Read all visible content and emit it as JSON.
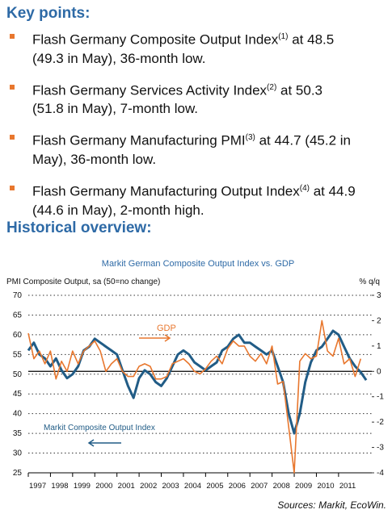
{
  "key_points": {
    "title": "Key points:",
    "items": [
      {
        "text": "Flash Germany Composite Output Index",
        "sup": "(1)",
        "rest": "at 48.5 (49.3 in May), 36-month low."
      },
      {
        "text": "Flash Germany Services Activity Index",
        "sup": "(2)",
        "rest": "at 50.3 (51.8 in May), 7-month low."
      },
      {
        "text": "Flash Germany Manufacturing PMI",
        "sup": "(3)",
        "rest": "at 44.7 (45.2 in May), 36-month low."
      },
      {
        "text": "Flash Germany Manufacturing Output Index",
        "sup": "(4)",
        "rest": "at 44.9 (44.6 in May), 2-month high."
      }
    ]
  },
  "historical_overview": {
    "title": "Historical overview:"
  },
  "chart_data": {
    "type": "line",
    "title": "Markit German Composite Output Index vs. GDP",
    "y_label": "PMI Composite Output, sa (50=no change)",
    "y2_label": "% q/q",
    "x": [
      1997,
      1997.25,
      1997.5,
      1997.75,
      1998,
      1998.25,
      1998.5,
      1998.75,
      1999,
      1999.25,
      1999.5,
      1999.75,
      2000,
      2000.25,
      2000.5,
      2000.75,
      2001,
      2001.25,
      2001.5,
      2001.75,
      2002,
      2002.25,
      2002.5,
      2002.75,
      2003,
      2003.25,
      2003.5,
      2003.75,
      2004,
      2004.25,
      2004.5,
      2004.75,
      2005,
      2005.25,
      2005.5,
      2005.75,
      2006,
      2006.25,
      2006.5,
      2006.75,
      2007,
      2007.25,
      2007.5,
      2007.75,
      2008,
      2008.25,
      2008.5,
      2008.75,
      2009,
      2009.25,
      2009.5,
      2009.75,
      2010,
      2010.25,
      2010.5,
      2010.75,
      2011,
      2011.25,
      2011.5,
      2011.75,
      2012,
      2012.25
    ],
    "xlim": [
      1997,
      2012.5
    ],
    "xticks": [
      1997,
      1998,
      1999,
      2000,
      2001,
      2002,
      2003,
      2004,
      2005,
      2006,
      2007,
      2008,
      2009,
      2010,
      2011
    ],
    "ylim": [
      25,
      70
    ],
    "yticks": [
      25,
      30,
      35,
      40,
      45,
      50,
      55,
      60,
      65,
      70
    ],
    "y2lim": [
      -4,
      3
    ],
    "y2ticks": [
      -4,
      -3,
      -2,
      -1,
      0,
      1,
      2,
      3
    ],
    "grid": true,
    "series": [
      {
        "name": "Markit Composite Output Index",
        "color": "#215c86",
        "values": [
          56,
          58,
          55,
          54,
          52,
          54,
          51,
          49,
          50,
          52,
          56,
          57,
          59,
          58,
          57,
          56,
          55,
          51,
          47,
          44,
          49,
          51,
          50,
          48,
          47,
          49,
          52,
          55,
          56,
          55,
          53,
          52,
          51,
          52,
          53,
          56,
          57,
          59,
          60,
          58,
          58,
          57,
          56,
          55,
          56,
          52,
          48,
          40,
          35,
          40,
          48,
          53,
          56,
          57,
          59,
          61,
          60,
          57,
          54,
          52,
          50.5,
          48.5
        ]
      },
      {
        "name": "GDP",
        "color": "#e8772e",
        "axis": "y2",
        "values": [
          1.5,
          0.5,
          0.8,
          0.3,
          0.8,
          -0.3,
          0.4,
          0,
          0.8,
          0.3,
          0.8,
          1,
          1.2,
          0.8,
          0,
          0.3,
          0.5,
          0,
          -0.2,
          -0.2,
          0.2,
          0.3,
          0.2,
          -0.3,
          -0.3,
          -0.2,
          0.3,
          0.4,
          0.5,
          0.3,
          0,
          -0.1,
          0.1,
          0.4,
          0.6,
          0.3,
          0.9,
          1.2,
          1,
          1,
          0.6,
          0.4,
          0.7,
          0.3,
          1,
          -0.5,
          -0.4,
          -2.2,
          -4,
          0.4,
          0.7,
          0.5,
          0.6,
          2,
          0.8,
          0.6,
          1.3,
          0.3,
          0.5,
          -0.2,
          0.5,
          null
        ]
      }
    ]
  },
  "sources": "Sources: Markit, EcoWin."
}
